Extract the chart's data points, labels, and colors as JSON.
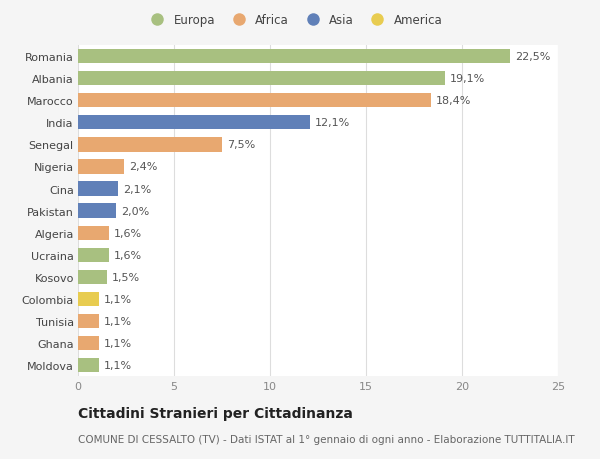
{
  "countries": [
    "Romania",
    "Albania",
    "Marocco",
    "India",
    "Senegal",
    "Nigeria",
    "Cina",
    "Pakistan",
    "Algeria",
    "Ucraina",
    "Kosovo",
    "Colombia",
    "Tunisia",
    "Ghana",
    "Moldova"
  ],
  "values": [
    22.5,
    19.1,
    18.4,
    12.1,
    7.5,
    2.4,
    2.1,
    2.0,
    1.6,
    1.6,
    1.5,
    1.1,
    1.1,
    1.1,
    1.1
  ],
  "labels": [
    "22,5%",
    "19,1%",
    "18,4%",
    "12,1%",
    "7,5%",
    "2,4%",
    "2,1%",
    "2,0%",
    "1,6%",
    "1,6%",
    "1,5%",
    "1,1%",
    "1,1%",
    "1,1%",
    "1,1%"
  ],
  "continents": [
    "Europa",
    "Europa",
    "Africa",
    "Asia",
    "Africa",
    "Africa",
    "Asia",
    "Asia",
    "Africa",
    "Europa",
    "Europa",
    "America",
    "Africa",
    "Africa",
    "Europa"
  ],
  "continent_colors": {
    "Europa": "#a8c080",
    "Africa": "#e8a870",
    "Asia": "#6080b8",
    "America": "#e8cc50"
  },
  "legend_order": [
    "Europa",
    "Africa",
    "Asia",
    "America"
  ],
  "xlim": [
    0,
    25
  ],
  "xticks": [
    0,
    5,
    10,
    15,
    20,
    25
  ],
  "title": "Cittadini Stranieri per Cittadinanza",
  "subtitle": "COMUNE DI CESSALTO (TV) - Dati ISTAT al 1° gennaio di ogni anno - Elaborazione TUTTITALIA.IT",
  "background_color": "#f5f5f5",
  "bar_background": "#ffffff",
  "grid_color": "#dddddd",
  "title_fontsize": 10,
  "subtitle_fontsize": 7.5,
  "label_fontsize": 8,
  "tick_fontsize": 8
}
